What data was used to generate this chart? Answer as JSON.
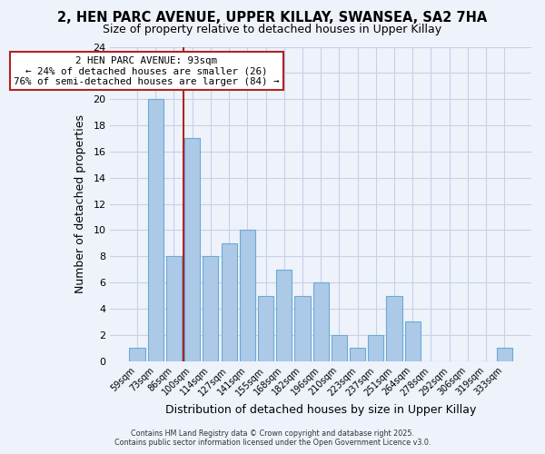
{
  "title": "2, HEN PARC AVENUE, UPPER KILLAY, SWANSEA, SA2 7HA",
  "subtitle": "Size of property relative to detached houses in Upper Killay",
  "xlabel": "Distribution of detached houses by size in Upper Killay",
  "ylabel": "Number of detached properties",
  "bar_labels": [
    "59sqm",
    "73sqm",
    "86sqm",
    "100sqm",
    "114sqm",
    "127sqm",
    "141sqm",
    "155sqm",
    "168sqm",
    "182sqm",
    "196sqm",
    "210sqm",
    "223sqm",
    "237sqm",
    "251sqm",
    "264sqm",
    "278sqm",
    "292sqm",
    "306sqm",
    "319sqm",
    "333sqm"
  ],
  "bar_values": [
    1,
    20,
    8,
    17,
    8,
    9,
    10,
    5,
    7,
    5,
    6,
    2,
    1,
    2,
    5,
    3,
    0,
    0,
    0,
    0,
    1
  ],
  "bar_color": "#adc9e8",
  "bar_edge_color": "#6aaad4",
  "vline_x_index": 2.5,
  "vline_color": "#b22222",
  "annotation_title": "2 HEN PARC AVENUE: 93sqm",
  "annotation_line1": "← 24% of detached houses are smaller (26)",
  "annotation_line2": "76% of semi-detached houses are larger (84) →",
  "ylim": [
    0,
    24
  ],
  "yticks": [
    0,
    2,
    4,
    6,
    8,
    10,
    12,
    14,
    16,
    18,
    20,
    22,
    24
  ],
  "background_color": "#eef2fb",
  "grid_color": "#c8d0e8",
  "footer_line1": "Contains HM Land Registry data © Crown copyright and database right 2025.",
  "footer_line2": "Contains public sector information licensed under the Open Government Licence v3.0.",
  "title_fontsize": 10.5,
  "subtitle_fontsize": 9
}
